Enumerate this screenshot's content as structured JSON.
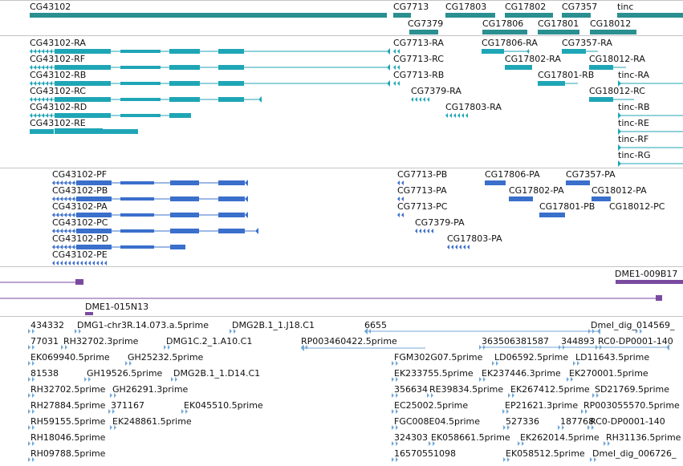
{
  "colors": {
    "gene": "#2a8f90",
    "transcript": "#1fa6b6",
    "protein": "#3a6fcc",
    "clone": "#7a4aa0",
    "est": "#73a7d4"
  },
  "genes_track": {
    "labels": [
      "CG43102",
      "CG7713",
      "CG17803",
      "CG17802",
      "CG7357",
      "tinc",
      "CG7379",
      "CG17806",
      "CG17801",
      "CG18012"
    ]
  },
  "transcripts_track": {
    "labels": [
      "CG43102-RA",
      "CG43102-RF",
      "CG43102-RB",
      "CG43102-RC",
      "CG43102-RD",
      "CG43102-RE",
      "CG7713-RA",
      "CG7713-RC",
      "CG7713-RB",
      "CG7379-RA",
      "CG17803-RA",
      "CG17806-RA",
      "CG7357-RA",
      "CG17802-RA",
      "CG18012-RA",
      "CG17801-RB",
      "tinc-RA",
      "CG18012-RC",
      "tinc-RB",
      "tinc-RE",
      "tinc-RF",
      "tinc-RG"
    ]
  },
  "proteins_track": {
    "labels": [
      "CG43102-PF",
      "CG43102-PB",
      "CG43102-PA",
      "CG43102-PC",
      "CG43102-PD",
      "CG43102-PE",
      "CG7713-PB",
      "CG7713-PA",
      "CG7713-PC",
      "CG7379-PA",
      "CG17803-PA",
      "CG17806-PA",
      "CG7357-PA",
      "CG17802-PA",
      "CG18012-PA",
      "CG17801-PB",
      "CG18012-PC"
    ]
  },
  "clones_track": {
    "labels": [
      "DME1-009B17",
      "DME1-015N13"
    ]
  },
  "ests_track": {
    "labels": [
      "434332",
      "DMG1-chr3R.14.073.a.5prime",
      "DMG2B.1_1.J18.C1",
      "6655",
      "Dmel_dig_014569_",
      "77031",
      "RH32702.3prime",
      "DMG1C.2_1.A10.C1",
      "RP003460422.5prime",
      "363506381587",
      "344893",
      "RC0-DP0001-140",
      "EK069940.5prime",
      "GH25232.5prime",
      "FGM302G07.5prime",
      "LD06592.5prime",
      "LD11643.5prime",
      "81538",
      "GH19526.5prime",
      "DMG2B.1_1.D14.C1",
      "EK233755.5prime",
      "EK237446.3prime",
      "EK270001.5prime",
      "RH32702.5prime",
      "GH26291.3prime",
      "356634",
      "RE39834.5prime",
      "EK267412.5prime",
      "SD21769.5prime",
      "RH27884.5prime",
      "371167",
      "EK045510.5prime",
      "EC25002.5prime",
      "EP21621.3prime",
      "RP003055570.5prime",
      "RH59155.5prime",
      "EK248861.5prime",
      "FGC008E04.5prime",
      "527336",
      "187768",
      "RC0-DP0001-140",
      "RH18046.5prime",
      "324303",
      "EK058661.5prime",
      "EK262014.5prime",
      "RH31136.5prime",
      "RH09788.5prime",
      "16570551098",
      "EK058512.5prime",
      "Dmel_dig_006726_"
    ]
  }
}
